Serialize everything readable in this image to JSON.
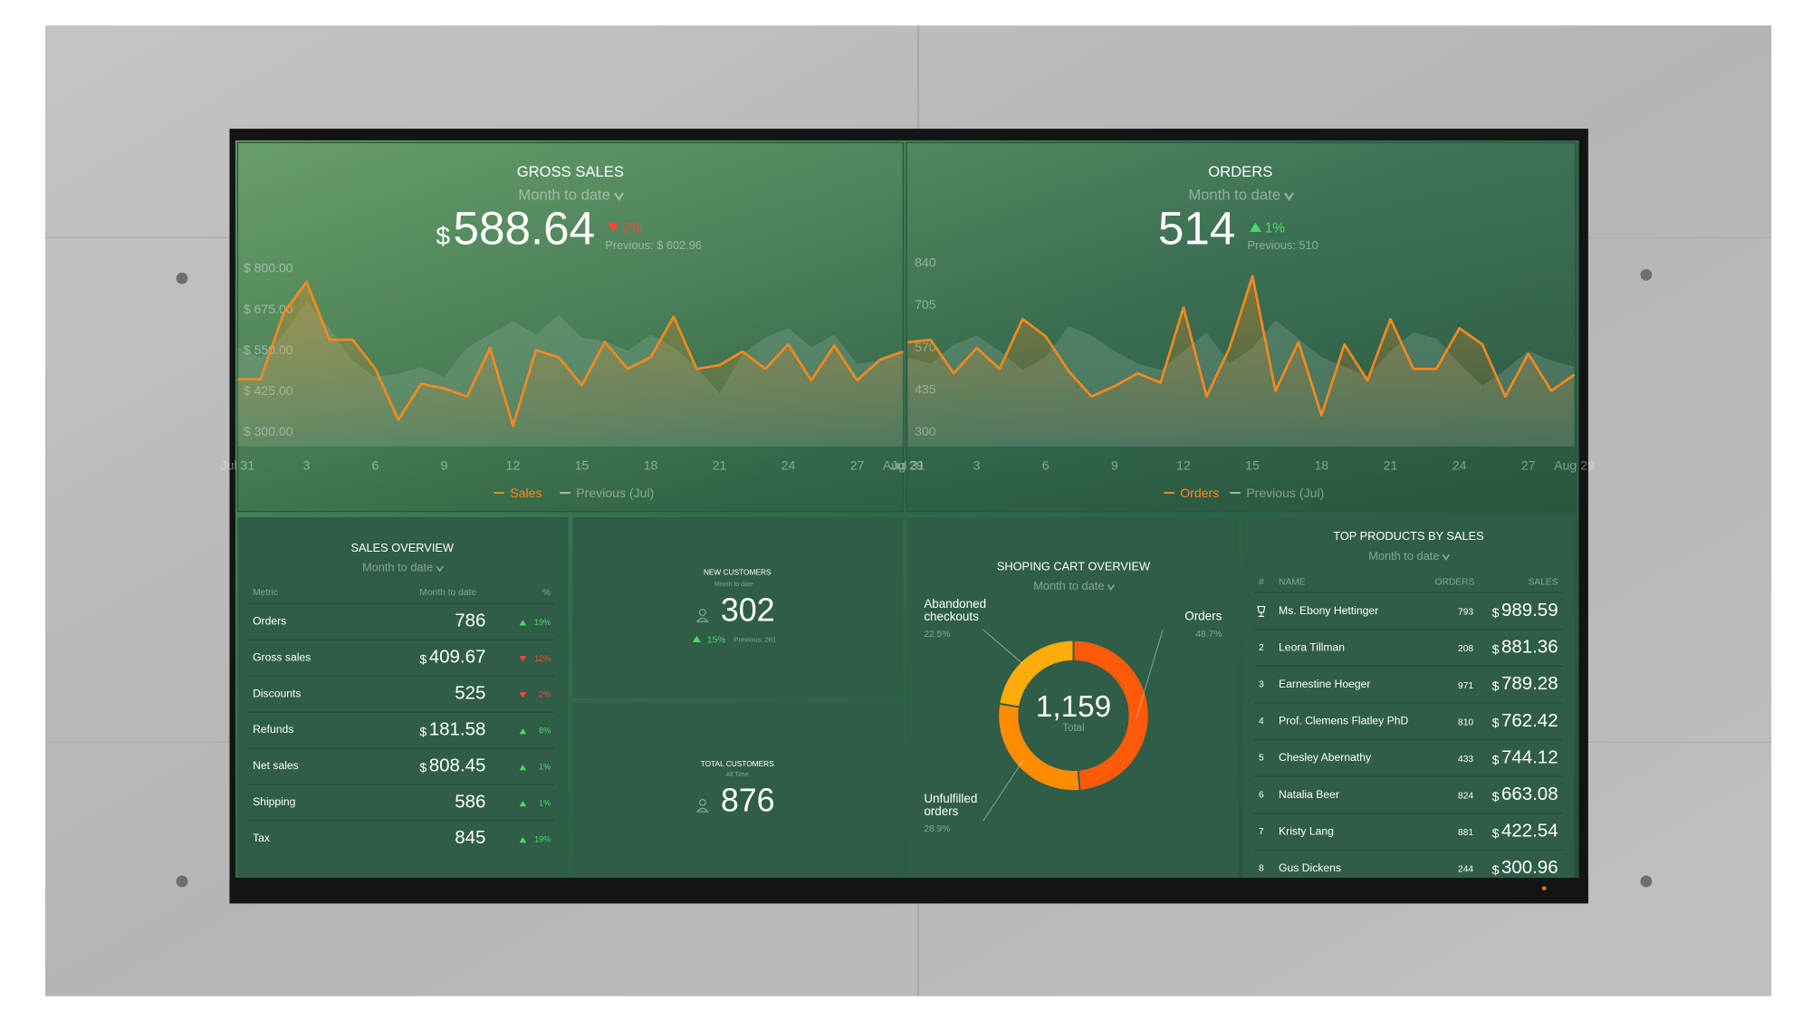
{
  "chart_data": [
    {
      "type": "line",
      "title": "GROSS SALES",
      "period": "Month to date",
      "kpi": {
        "prefix": "$",
        "value": 588.64,
        "change": "2%",
        "direction": "down",
        "previous": "Previous: $ 602.96"
      },
      "categories": [
        "Jul 31",
        null,
        null,
        "3",
        null,
        null,
        "6",
        null,
        null,
        "9",
        null,
        null,
        "12",
        null,
        null,
        "15",
        null,
        null,
        "18",
        null,
        null,
        "21",
        null,
        null,
        "24",
        null,
        null,
        "27",
        null,
        "Aug 29"
      ],
      "series": [
        {
          "name": "Sales",
          "color": "#ff8a1c",
          "values": [
            463,
            463,
            665,
            761,
            584,
            584,
            495,
            339,
            449,
            435,
            410,
            559,
            321,
            552,
            530,
            445,
            577,
            495,
            530,
            655,
            495,
            506,
            548,
            495,
            570,
            460,
            566,
            460,
            523,
            548
          ]
        },
        {
          "name": "Previous (Jul)",
          "color": "#a9bdb1",
          "values": [
            560,
            530,
            600,
            700,
            620,
            520,
            470,
            480,
            500,
            470,
            560,
            600,
            640,
            600,
            660,
            590,
            580,
            550,
            600,
            560,
            500,
            420,
            540,
            590,
            620,
            560,
            600,
            510,
            520,
            550
          ]
        }
      ],
      "ylim": [
        300,
        800
      ],
      "yticks": [
        {
          "value": 300,
          "label": "$ 300.00"
        },
        {
          "value": 425,
          "label": "$ 425.00"
        },
        {
          "value": 550,
          "label": "$ 550.00"
        },
        {
          "value": 675,
          "label": "$ 675.00"
        },
        {
          "value": 800,
          "label": "$ 800.00"
        }
      ]
    },
    {
      "type": "line",
      "title": "ORDERS",
      "period": "Month to date",
      "kpi": {
        "value": 514,
        "change": "1%",
        "direction": "up",
        "previous": "Previous: 510"
      },
      "categories": [
        "Jul 31",
        null,
        null,
        "3",
        null,
        null,
        "6",
        null,
        null,
        "9",
        null,
        null,
        "12",
        null,
        null,
        "15",
        null,
        null,
        "18",
        null,
        null,
        "21",
        null,
        null,
        "24",
        null,
        null,
        "27",
        null,
        "Aug 29"
      ],
      "series": [
        {
          "name": "Orders",
          "color": "#ff8a1c",
          "values": [
            588,
            596,
            489,
            570,
            503,
            662,
            607,
            496,
            415,
            448,
            489,
            459,
            699,
            415,
            570,
            799,
            433,
            588,
            355,
            581,
            466,
            662,
            503,
            503,
            633,
            581,
            415,
            551,
            433,
            485
          ]
        },
        {
          "name": "Previous (Jul)",
          "color": "#a9bdb1",
          "values": [
            540,
            520,
            580,
            610,
            560,
            500,
            540,
            640,
            610,
            560,
            520,
            500,
            560,
            620,
            520,
            570,
            660,
            600,
            540,
            510,
            480,
            560,
            620,
            600,
            520,
            450,
            500,
            560,
            530,
            510
          ]
        }
      ],
      "ylim": [
        300,
        840
      ],
      "yticks": [
        300,
        435,
        570,
        705,
        840
      ]
    },
    {
      "type": "pie",
      "title": "SHOPING CART OVERVIEW",
      "period": "Month to date",
      "total": "1,159",
      "total_label": "Total",
      "categories": [
        "Orders",
        "Unfulfilled orders",
        "Abandoned checkouts"
      ],
      "values": [
        48.7,
        28.9,
        22.5
      ],
      "value_labels": [
        "48.7%",
        "28.9%",
        "22.5%"
      ],
      "colors": [
        "#ff5a0a",
        "#ff8c00",
        "#ffac0a"
      ]
    }
  ],
  "sales_overview": {
    "title": "SALES OVERVIEW",
    "period": "Month to date",
    "columns": [
      "Metric",
      "Month to date",
      "%"
    ],
    "rows": [
      {
        "metric": "Orders",
        "value": 786,
        "change": "19%",
        "direction": "up"
      },
      {
        "metric": "Gross sales",
        "prefix": "$",
        "value": 409.67,
        "change": "12%",
        "direction": "down"
      },
      {
        "metric": "Discounts",
        "value": 525,
        "change": "2%",
        "direction": "down"
      },
      {
        "metric": "Refunds",
        "prefix": "$",
        "value": 181.58,
        "change": "8%",
        "direction": "up"
      },
      {
        "metric": "Net sales",
        "prefix": "$",
        "value": 808.45,
        "change": "1%",
        "direction": "up"
      },
      {
        "metric": "Shipping",
        "value": 586,
        "change": "1%",
        "direction": "up"
      },
      {
        "metric": "Tax",
        "value": 845,
        "change": "19%",
        "direction": "up"
      }
    ]
  },
  "new_customers": {
    "title": "NEW CUSTOMERS",
    "period": "Month to date",
    "value": 302,
    "change": "15%",
    "direction": "up",
    "previous": "Previous: 261"
  },
  "total_customers": {
    "title": "TOTAL CUSTOMERS",
    "period": "All Time",
    "value": 876
  },
  "top_products": {
    "title": "TOP PRODUCTS BY SALES",
    "period": "Month to date",
    "columns": [
      "#",
      "NAME",
      "ORDERS",
      "SALES"
    ],
    "rows": [
      {
        "rank": null,
        "name": "Ms. Ebony Hettinger",
        "orders": 793,
        "prefix": "$",
        "sales": 989.59
      },
      {
        "rank": 2,
        "name": "Leora Tillman",
        "orders": 208,
        "prefix": "$",
        "sales": 881.36
      },
      {
        "rank": 3,
        "name": "Earnestine Hoeger",
        "orders": 971,
        "prefix": "$",
        "sales": 789.28
      },
      {
        "rank": 4,
        "name": "Prof. Clemens Flatley PhD",
        "orders": 810,
        "prefix": "$",
        "sales": 762.42
      },
      {
        "rank": 5,
        "name": "Chesley Abernathy",
        "orders": 433,
        "prefix": "$",
        "sales": 744.12
      },
      {
        "rank": 6,
        "name": "Natalia Beer",
        "orders": 824,
        "prefix": "$",
        "sales": 663.08
      },
      {
        "rank": 7,
        "name": "Kristy Lang",
        "orders": 881,
        "prefix": "$",
        "sales": 422.54
      },
      {
        "rank": 8,
        "name": "Gus Dickens",
        "orders": 244,
        "prefix": "$",
        "sales": 300.96
      }
    ]
  }
}
